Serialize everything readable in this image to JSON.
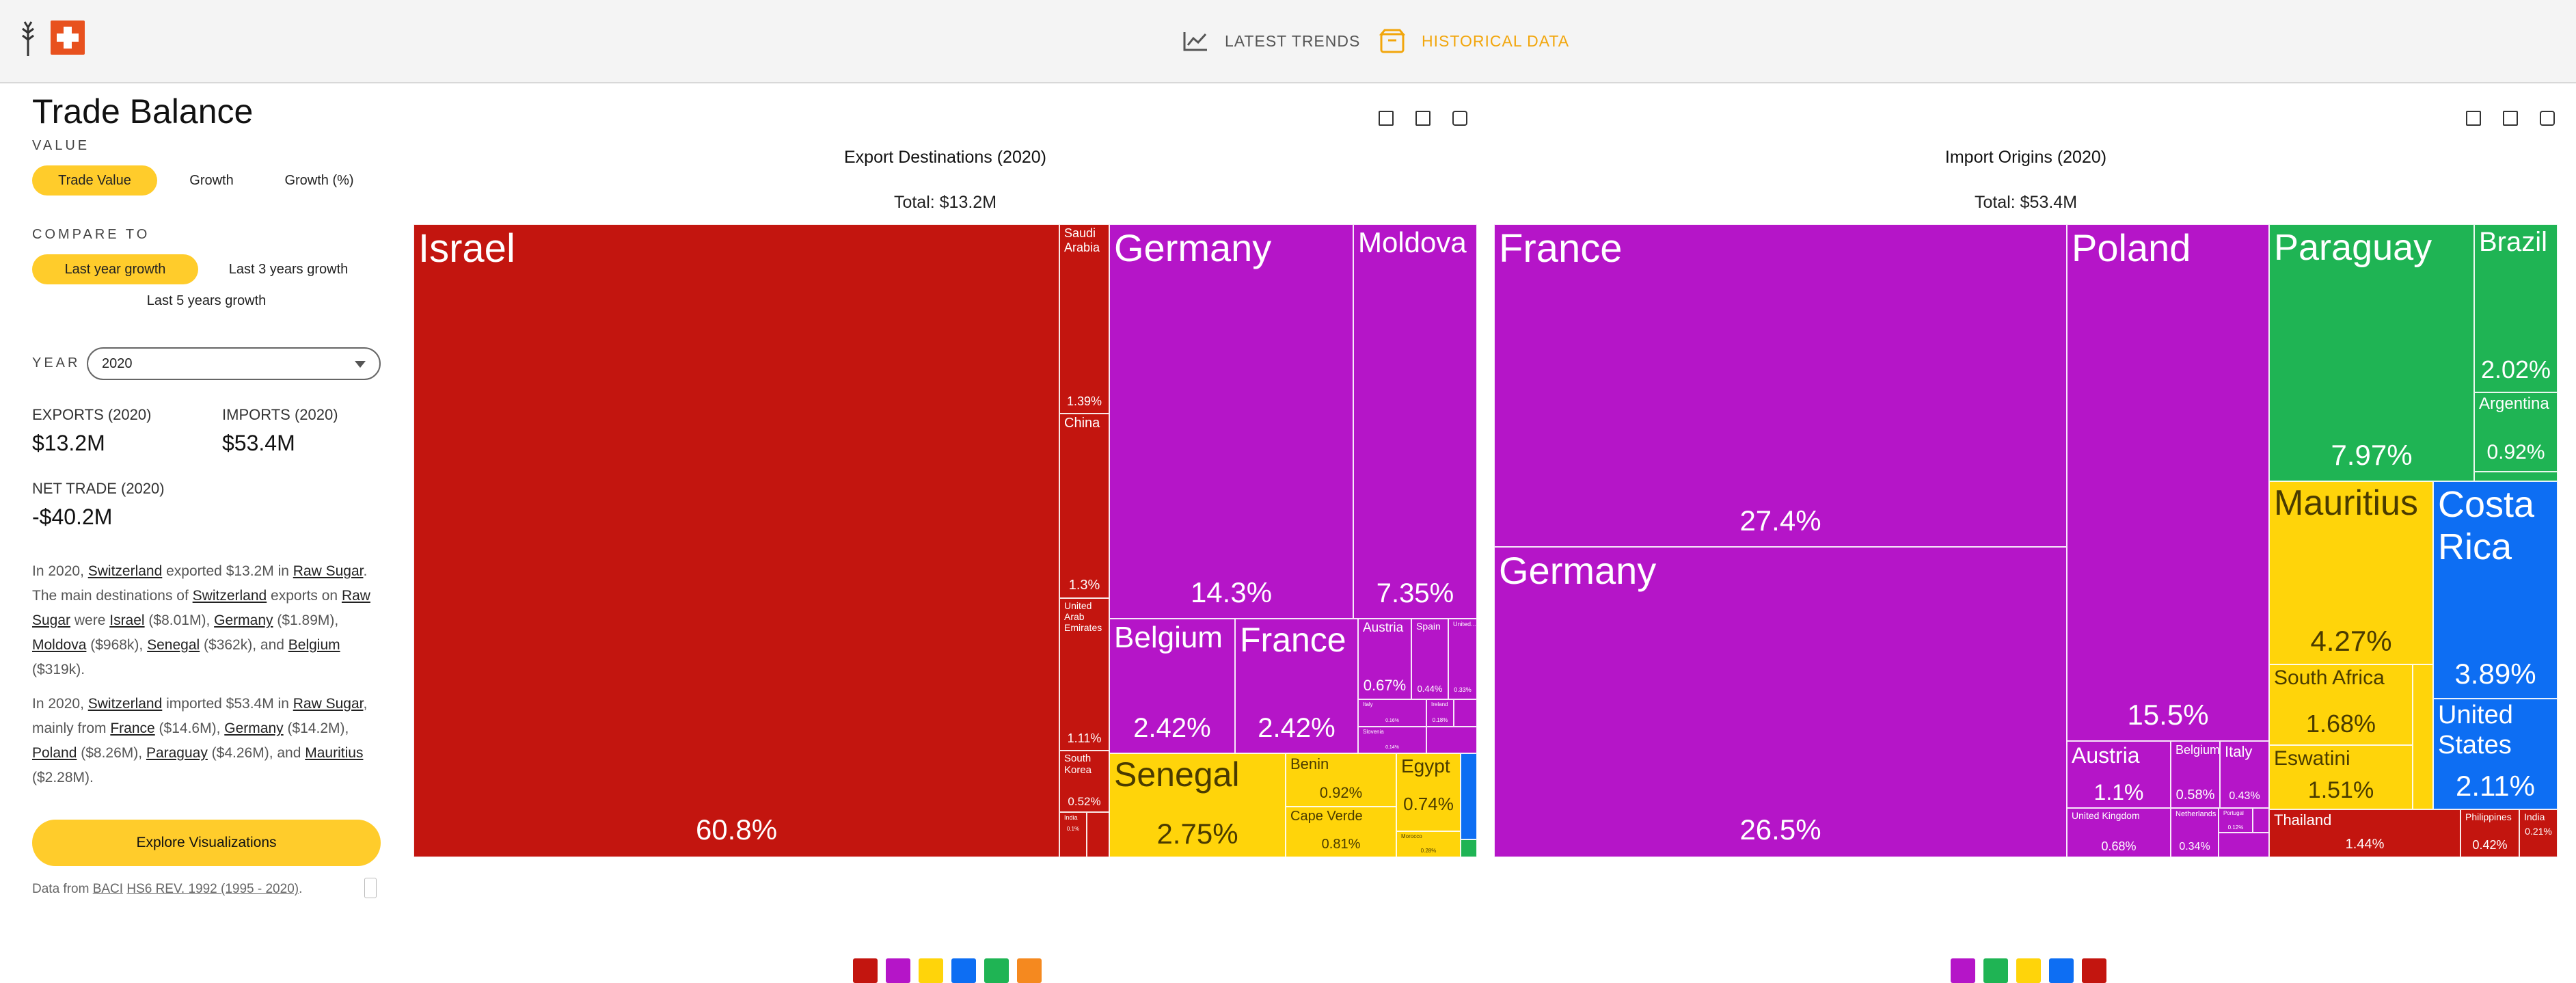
{
  "nav": {
    "trends": "LATEST TRENDS",
    "historical": "HISTORICAL DATA"
  },
  "sidebar": {
    "title": "Trade Balance",
    "value_label": "VALUE",
    "value_opts": [
      "Trade Value",
      "Growth",
      "Growth (%)"
    ],
    "compare_label": "COMPARE TO",
    "compare_opts": [
      "Last year growth",
      "Last 3 years growth",
      "Last 5 years growth"
    ],
    "year_label": "YEAR",
    "year": "2020",
    "exports_label": "EXPORTS (2020)",
    "exports": "$13.2M",
    "imports_label": "IMPORTS (2020)",
    "imports": "$53.4M",
    "net_label": "NET TRADE (2020)",
    "net": "-$40.2M",
    "p1": {
      "a": "In 2020, ",
      "c": "Switzerland",
      "b": " exported $13.2M in ",
      "p": "Raw Sugar",
      "d": ". The main destinations of ",
      "c2": "Switzerland",
      "e": " exports on ",
      "p2": "Raw Sugar",
      "f": " were ",
      "i": "Israel",
      "iv": " ($8.01M), ",
      "g": "Germany",
      "gv": " ($1.89M), ",
      "m": "Moldova",
      "mv": " ($968k), ",
      "s": "Senegal",
      "sv": " ($362k), and ",
      "b2": "Belgium",
      "bv": " ($319k)."
    },
    "p2": {
      "a": "In 2020, ",
      "c": "Switzerland",
      "b": " imported $53.4M in ",
      "p": "Raw Sugar",
      "d": ", mainly from ",
      "f": "France",
      "fv": " ($14.6M), ",
      "g": "Germany",
      "gv": " ($14.2M), ",
      "po": "Poland",
      "pov": " ($8.26M), ",
      "pa": "Paraguay",
      "pav": " ($4.26M), and ",
      "ma": "Mauritius",
      "mav": " ($2.28M)."
    },
    "explore": "Explore Visualizations",
    "data_from_a": "Data from ",
    "data_from_src": "BACI",
    "data_from_rev": "HS6 REV. 1992 (1995 - 2020)",
    "data_from_end": "."
  },
  "export_chart": {
    "title": "Export Destinations (2020)",
    "total": "Total: $13.2M",
    "cells": [
      [
        "Israel",
        "60.8%"
      ],
      [
        "Saudi Arabia",
        "1.39%"
      ],
      [
        "China",
        "1.3%"
      ],
      [
        "United Arab Emirates",
        "1.11%"
      ],
      [
        "South Korea",
        "0.52%"
      ],
      [
        "India",
        "0.1%"
      ],
      [
        "Germany",
        "14.3%"
      ],
      [
        "Moldova",
        "7.35%"
      ],
      [
        "Belgium",
        "2.42%"
      ],
      [
        "France",
        "2.42%"
      ],
      [
        "Austria",
        "0.67%"
      ],
      [
        "Spain",
        "0.44%"
      ],
      [
        "United...",
        "0.33%"
      ],
      [
        "Italy",
        "0.16%"
      ],
      [
        "Ireland",
        "0.18%"
      ],
      [
        "Slovenia",
        "0.14%"
      ],
      [
        "Senegal",
        "2.75%"
      ],
      [
        "Benin",
        "0.92%"
      ],
      [
        "Egypt",
        "0.74%"
      ],
      [
        "Cape Verde",
        "0.81%"
      ],
      [
        "Morocco",
        "0.28%"
      ]
    ]
  },
  "import_chart": {
    "title": "Import Origins (2020)",
    "total": "Total: $53.4M",
    "cells": [
      [
        "France",
        "27.4%"
      ],
      [
        "Germany",
        "26.5%"
      ],
      [
        "Poland",
        "15.5%"
      ],
      [
        "Austria",
        "1.1%"
      ],
      [
        "Belgium",
        "0.58%"
      ],
      [
        "Italy",
        "0.43%"
      ],
      [
        "United Kingdom",
        "0.68%"
      ],
      [
        "Netherlands",
        "0.34%"
      ],
      [
        "Portugal",
        "0.12%"
      ],
      [
        "Paraguay",
        "7.97%"
      ],
      [
        "Brazil",
        "2.02%"
      ],
      [
        "Argentina",
        "0.92%"
      ],
      [
        "Mauritius",
        "4.27%"
      ],
      [
        "South Africa",
        "1.68%"
      ],
      [
        "Eswatini",
        "1.51%"
      ],
      [
        "Costa Rica",
        "3.89%"
      ],
      [
        "United States",
        "2.11%"
      ],
      [
        "Thailand",
        "1.44%"
      ],
      [
        "Philippines",
        "0.42%"
      ],
      [
        "India",
        "0.21%"
      ]
    ]
  },
  "colors": {
    "asia": "#c3150f",
    "europe": "#b515c8",
    "africa": "#ffd40a",
    "south_america": "#1fb454",
    "north_america": "#0d6ef3",
    "oceania": "#f5891f",
    "accent": "#ffcc2b"
  }
}
